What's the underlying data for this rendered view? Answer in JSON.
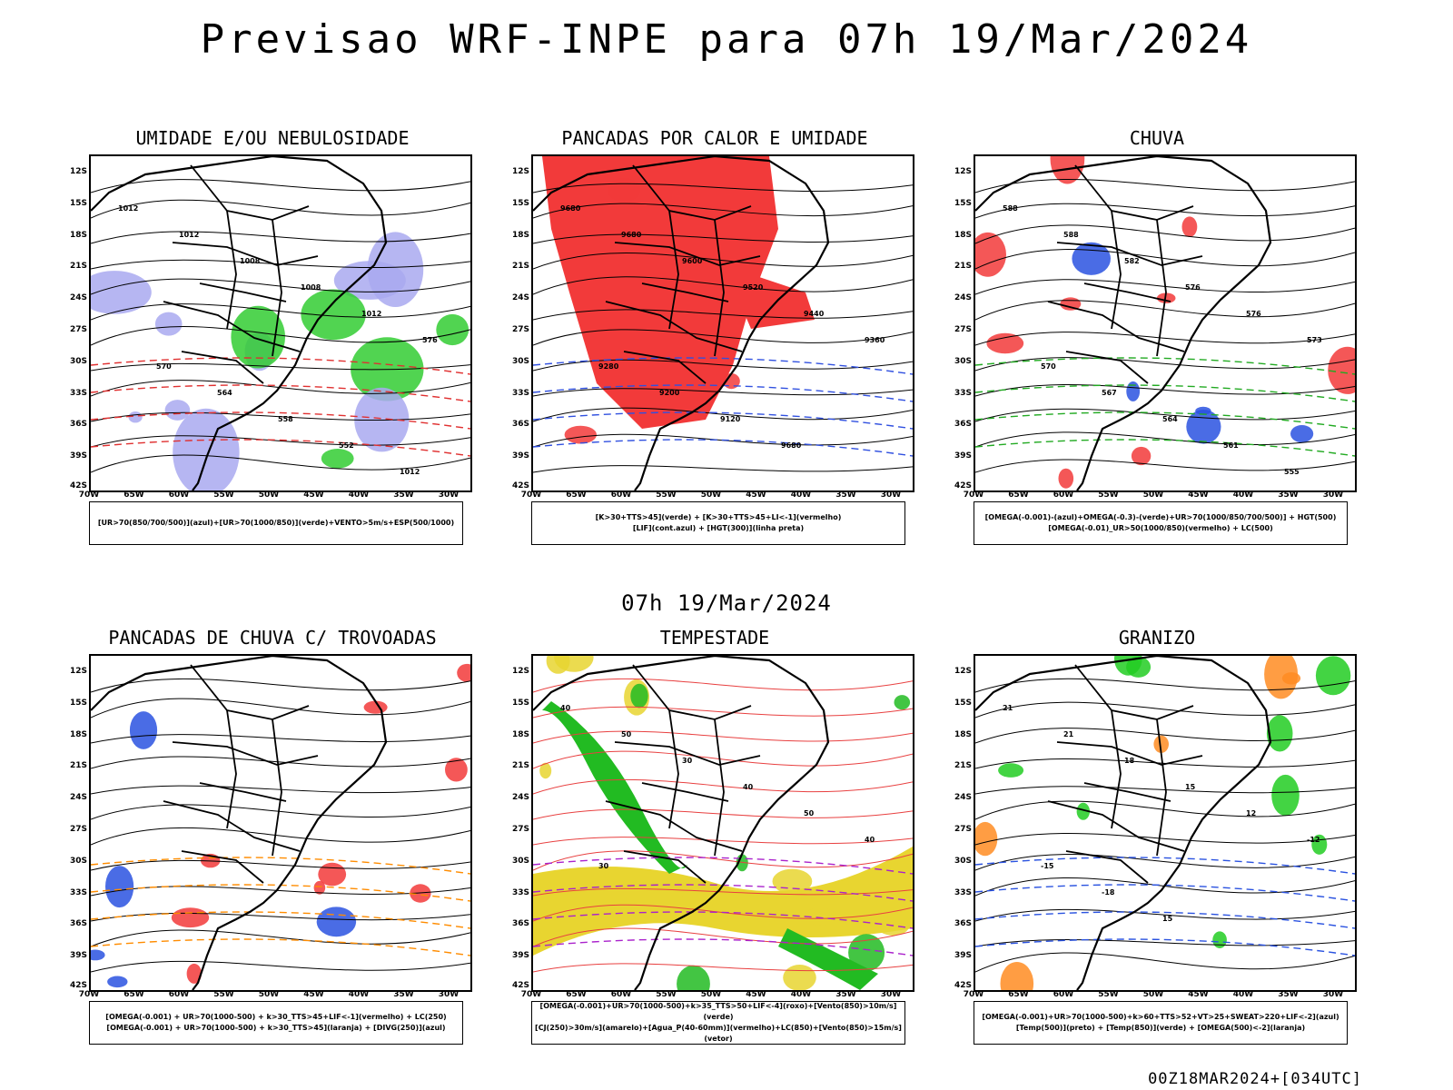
{
  "page": {
    "title": "Previsao WRF-INPE  para 07h 19/Mar/2024",
    "subtitle": "07h 19/Mar/2024",
    "footer": "00Z18MAR2024+[034UTC]"
  },
  "axes": {
    "lat_labels": [
      "12S",
      "15S",
      "18S",
      "21S",
      "24S",
      "27S",
      "30S",
      "33S",
      "36S",
      "39S",
      "42S"
    ],
    "lon_labels": [
      "70W",
      "65W",
      "60W",
      "55W",
      "50W",
      "45W",
      "40W",
      "35W",
      "30W"
    ]
  },
  "panels": [
    {
      "id": "umidade",
      "title": "UMIDADE E/OU NEBULOSIDADE",
      "legend": [
        "[UR>70(850/700/500)](azul)+[UR>70(1000/850)](verde)+VENTO>5m/s+ESP(500/1000)"
      ],
      "contour_labels": [
        "1012",
        "1012",
        "1008",
        "1008",
        "1012",
        "576",
        "570",
        "564",
        "558",
        "552",
        "1012"
      ],
      "colors": {
        "fill_a": "#a9a9f0",
        "fill_b": "#33cc33",
        "contour": "#000000",
        "dash": "#e03030"
      }
    },
    {
      "id": "pancadas-calor",
      "title": "PANCADAS POR CALOR E UMIDADE",
      "legend": [
        "[K>30+TTS>45](verde) + [K>30+TTS>45+LI<-1](vermelho)",
        "[LIF](cont.azul) + [HGT(300)](linha preta)"
      ],
      "contour_labels": [
        "9680",
        "9680",
        "9600",
        "9520",
        "9440",
        "9360",
        "9280",
        "9200",
        "9120",
        "9680"
      ],
      "colors": {
        "fill_a": "#f23a3a",
        "fill_b": "#2e5f5f",
        "contour": "#000000",
        "dash": "#3050e0"
      }
    },
    {
      "id": "chuva",
      "title": "CHUVA",
      "legend": [
        "[OMEGA(-0.001)-(azul)+OMEGA(-0.3)-(verde)+UR>70(1000/850/700/500)] + HGT(500)",
        "[OMEGA(-0.01)_UR>50(1000/850)(vermelho) + LC(500)"
      ],
      "contour_labels": [
        "588",
        "588",
        "582",
        "576",
        "576",
        "573",
        "570",
        "567",
        "564",
        "561",
        "555"
      ],
      "colors": {
        "fill_a": "#f23a3a",
        "fill_b": "#2a52e0",
        "contour": "#000000",
        "dash": "#22aa22"
      }
    },
    {
      "id": "trovoadas",
      "title": "PANCADAS DE CHUVA C/ TROVOADAS",
      "legend": [
        "[OMEGA(-0.001) + UR>70(1000-500) + k>30_TTS>45+LIF<-1](vermelho) + LC(250)",
        "[OMEGA(-0.001) + UR>70(1000-500) + k>30_TTS>45](laranja) + [DIVG(250)](azul)"
      ],
      "contour_labels": [],
      "colors": {
        "fill_a": "#f23a3a",
        "fill_b": "#2a52e0",
        "contour": "#000000",
        "dash": "#ff8c00"
      }
    },
    {
      "id": "tempestade",
      "title": "TEMPESTADE",
      "legend": [
        "[OMEGA(-0.001)+UR>70(1000-500)+k>35_TTS>50+LIF<-4](roxo)+[Vento(850)>10m/s](verde)",
        "[CJ(250)>30m/s](amarelo)+[Agua_P(40-60mm)](vermelho)+LC(850)+[Vento(850)>15m/s](vetor)"
      ],
      "contour_labels": [
        "40",
        "50",
        "30",
        "40",
        "50",
        "40",
        "30"
      ],
      "colors": {
        "fill_a": "#e8d530",
        "fill_b": "#22bb22",
        "contour": "#e84040",
        "dash": "#aa22cc"
      }
    },
    {
      "id": "granizo",
      "title": "GRANIZO",
      "legend": [
        "[OMEGA(-0.001)+UR>70(1000-500)+k>60+TTS>52+VT>25+SWEAT>220+LIF<-2](azul)",
        "[Temp(500)](preto) + [Temp(850)](verde) + [OMEGA(500)<-2](laranja)"
      ],
      "contour_labels": [
        "21",
        "21",
        "18",
        "15",
        "12",
        "-12",
        "-15",
        "-18",
        "15"
      ],
      "colors": {
        "fill_a": "#22cc22",
        "fill_b": "#ff8c22",
        "contour": "#000000",
        "dash": "#2a52e0"
      }
    }
  ]
}
